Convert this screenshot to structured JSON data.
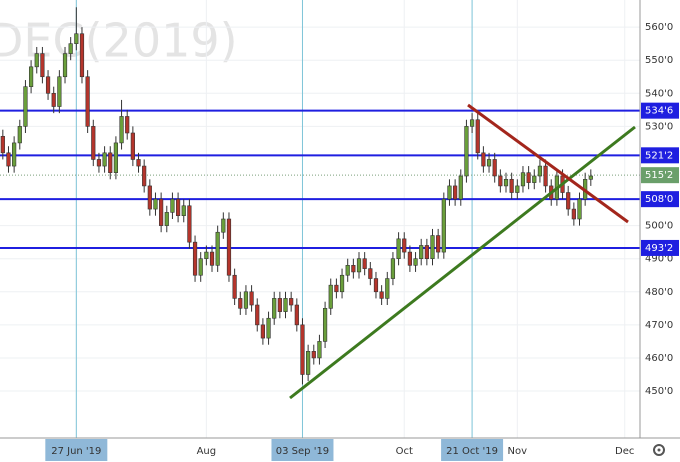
{
  "chart_data": {
    "type": "candlestick",
    "title": "DEC(2019)",
    "open": [
      527,
      522,
      518,
      525,
      530,
      542,
      548,
      552,
      545,
      540,
      536,
      545,
      552,
      555,
      558,
      545,
      530,
      520,
      518,
      522,
      516,
      525,
      533,
      528,
      520,
      518,
      512,
      505,
      508,
      500,
      504,
      508,
      503,
      506,
      495,
      485,
      490,
      492,
      488,
      498,
      502,
      485,
      478,
      475,
      480,
      476,
      470,
      466,
      472,
      478,
      474,
      478,
      476,
      470,
      455,
      462,
      460,
      465,
      475,
      482,
      480,
      485,
      488,
      486,
      490,
      487,
      484,
      480,
      478,
      484,
      490,
      496,
      492,
      488,
      490,
      494,
      490,
      497,
      492,
      508,
      512,
      508,
      515,
      530,
      532,
      522,
      518,
      520,
      515,
      512,
      514,
      510,
      512,
      516,
      513,
      515,
      518,
      512,
      508,
      515,
      510,
      505,
      502,
      508,
      514
    ],
    "high": [
      529,
      524,
      527,
      532,
      544,
      550,
      554,
      554,
      547,
      542,
      547,
      554,
      557,
      566,
      560,
      547,
      532,
      522,
      524,
      524,
      527,
      538,
      535,
      530,
      522,
      520,
      514,
      510,
      510,
      506,
      510,
      510,
      508,
      508,
      497,
      492,
      494,
      494,
      500,
      504,
      504,
      487,
      480,
      482,
      482,
      478,
      472,
      474,
      480,
      480,
      480,
      480,
      478,
      472,
      464,
      464,
      467,
      477,
      484,
      484,
      487,
      490,
      490,
      492,
      492,
      489,
      486,
      482,
      486,
      492,
      498,
      498,
      494,
      492,
      496,
      496,
      499,
      499,
      510,
      514,
      514,
      517,
      532,
      534,
      534,
      524,
      522,
      522,
      517,
      516,
      516,
      514,
      518,
      518,
      517,
      520,
      520,
      514,
      517,
      517,
      512,
      507,
      510,
      516,
      517
    ],
    "low": [
      520,
      516,
      516,
      523,
      528,
      540,
      546,
      543,
      538,
      534,
      534,
      543,
      550,
      553,
      543,
      528,
      518,
      516,
      516,
      514,
      514,
      523,
      526,
      518,
      516,
      510,
      503,
      503,
      498,
      498,
      502,
      501,
      501,
      493,
      483,
      483,
      488,
      486,
      486,
      496,
      483,
      476,
      473,
      473,
      474,
      468,
      464,
      464,
      470,
      472,
      472,
      474,
      468,
      452,
      453,
      458,
      458,
      463,
      473,
      478,
      478,
      483,
      484,
      484,
      485,
      482,
      478,
      476,
      476,
      482,
      488,
      490,
      486,
      486,
      488,
      488,
      488,
      490,
      490,
      506,
      506,
      506,
      513,
      528,
      520,
      516,
      516,
      513,
      510,
      510,
      508,
      508,
      510,
      511,
      511,
      513,
      510,
      506,
      506,
      508,
      503,
      500,
      500,
      506,
      512
    ],
    "close": [
      522,
      518,
      525,
      530,
      542,
      548,
      552,
      545,
      540,
      536,
      545,
      552,
      555,
      558,
      545,
      530,
      520,
      518,
      522,
      516,
      525,
      533,
      528,
      520,
      518,
      512,
      505,
      508,
      500,
      504,
      508,
      503,
      506,
      495,
      485,
      490,
      492,
      488,
      498,
      502,
      485,
      478,
      475,
      480,
      476,
      470,
      466,
      472,
      478,
      474,
      478,
      476,
      470,
      455,
      462,
      460,
      465,
      475,
      482,
      480,
      485,
      488,
      486,
      490,
      487,
      484,
      480,
      478,
      484,
      490,
      496,
      492,
      488,
      490,
      494,
      490,
      497,
      492,
      508,
      512,
      508,
      515,
      530,
      532,
      522,
      518,
      520,
      515,
      512,
      514,
      510,
      512,
      516,
      513,
      515,
      518,
      512,
      508,
      515,
      510,
      505,
      502,
      508,
      514,
      515
    ],
    "up_color": "#6a9f3b",
    "down_color": "#b5352c",
    "xlim": [
      -0.5,
      112.7
    ],
    "xticks": [
      {
        "value": 13,
        "label": "27 Jun '19",
        "highlight": true
      },
      {
        "value": 36,
        "label": "Aug"
      },
      {
        "value": 53,
        "label": "03 Sep '19",
        "highlight": true
      },
      {
        "value": 71,
        "label": "Oct"
      },
      {
        "value": 83,
        "label": "21 Oct '19",
        "highlight": true
      },
      {
        "value": 91,
        "label": "Nov"
      },
      {
        "value": 110,
        "label": "Dec"
      }
    ],
    "ylim": [
      435.8,
      568.2
    ],
    "yticks": [
      {
        "value": 560,
        "label": "560'0"
      },
      {
        "value": 550,
        "label": "550'0"
      },
      {
        "value": 540,
        "label": "540'0"
      },
      {
        "value": 530,
        "label": "530'0"
      },
      {
        "value": 500,
        "label": "500'0"
      },
      {
        "value": 490,
        "label": "490'0"
      },
      {
        "value": 480,
        "label": "480'0"
      },
      {
        "value": 470,
        "label": "470'0"
      },
      {
        "value": 460,
        "label": "460'0"
      },
      {
        "value": 450,
        "label": "450'0"
      }
    ],
    "grid": true,
    "levels": [
      {
        "value": 534.75,
        "label": "534'6"
      },
      {
        "value": 521.25,
        "label": "521'2"
      },
      {
        "value": 508,
        "label": "508'0"
      },
      {
        "value": 493.25,
        "label": "493'2"
      }
    ],
    "level_color": "#1f1fe0",
    "last_price": {
      "value": 515.25,
      "label": "515'2"
    },
    "last_price_color": "#6a9f6a"
  }
}
